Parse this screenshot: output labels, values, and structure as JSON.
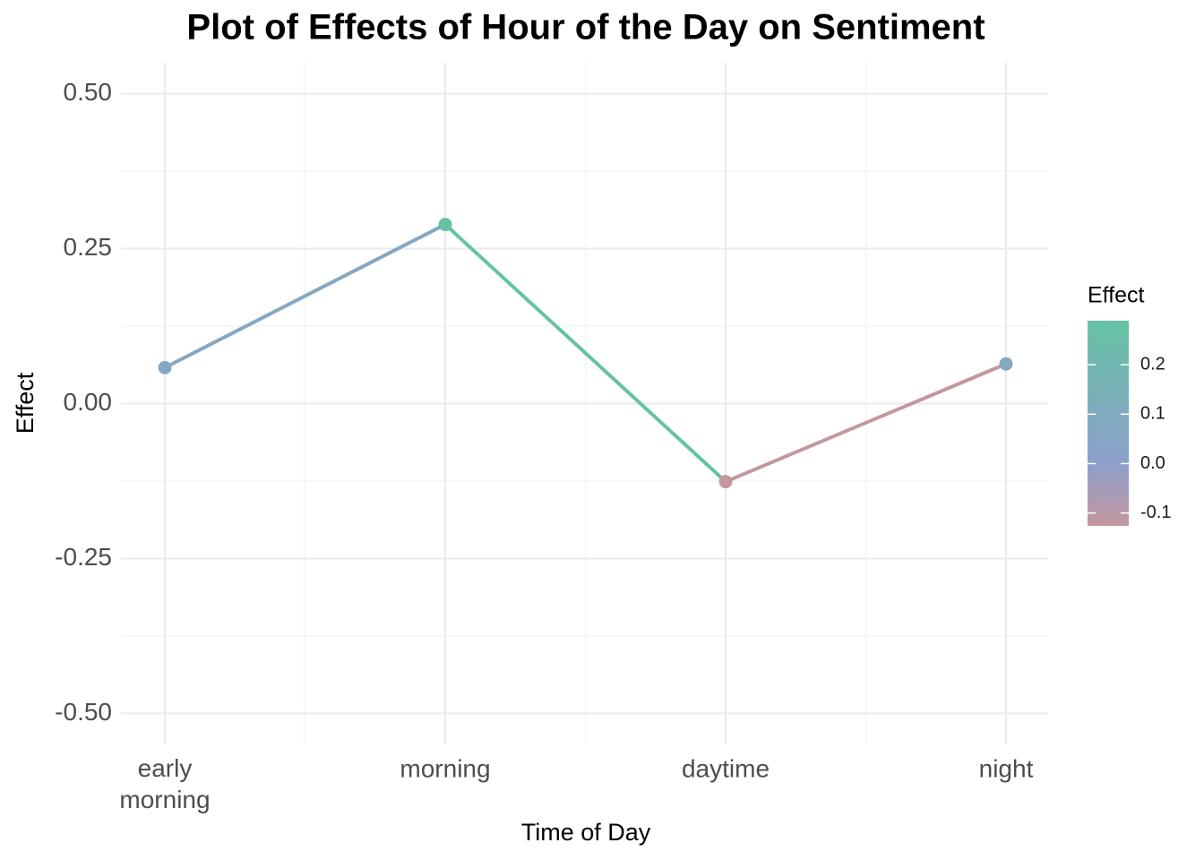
{
  "chart_data": {
    "type": "line",
    "title": "Plot of Effects of Hour of the Day on Sentiment",
    "x_label": "Time of Day",
    "y_label": "Effect",
    "categories": [
      "early\nmorning",
      "morning",
      "daytime",
      "night"
    ],
    "values": [
      0.058,
      0.289,
      -0.126,
      0.064
    ],
    "ylim": [
      -0.55,
      0.55
    ],
    "yticks": [
      {
        "value": -0.5,
        "label": "-0.50"
      },
      {
        "value": -0.25,
        "label": "-0.25"
      },
      {
        "value": 0,
        "label": "0.00"
      },
      {
        "value": 0.25,
        "label": "0.25"
      },
      {
        "value": 0.5,
        "label": "0.50"
      }
    ],
    "grid": true,
    "colorscale": {
      "low": "#c4979f",
      "mid": "#8da0cb",
      "high": "#66c2a5"
    },
    "legend": {
      "title": "Effect",
      "position": "right",
      "ticks": [
        -0.1,
        {
          "value": 0,
          "label": "0.0"
        },
        0.1,
        0.2
      ]
    }
  }
}
